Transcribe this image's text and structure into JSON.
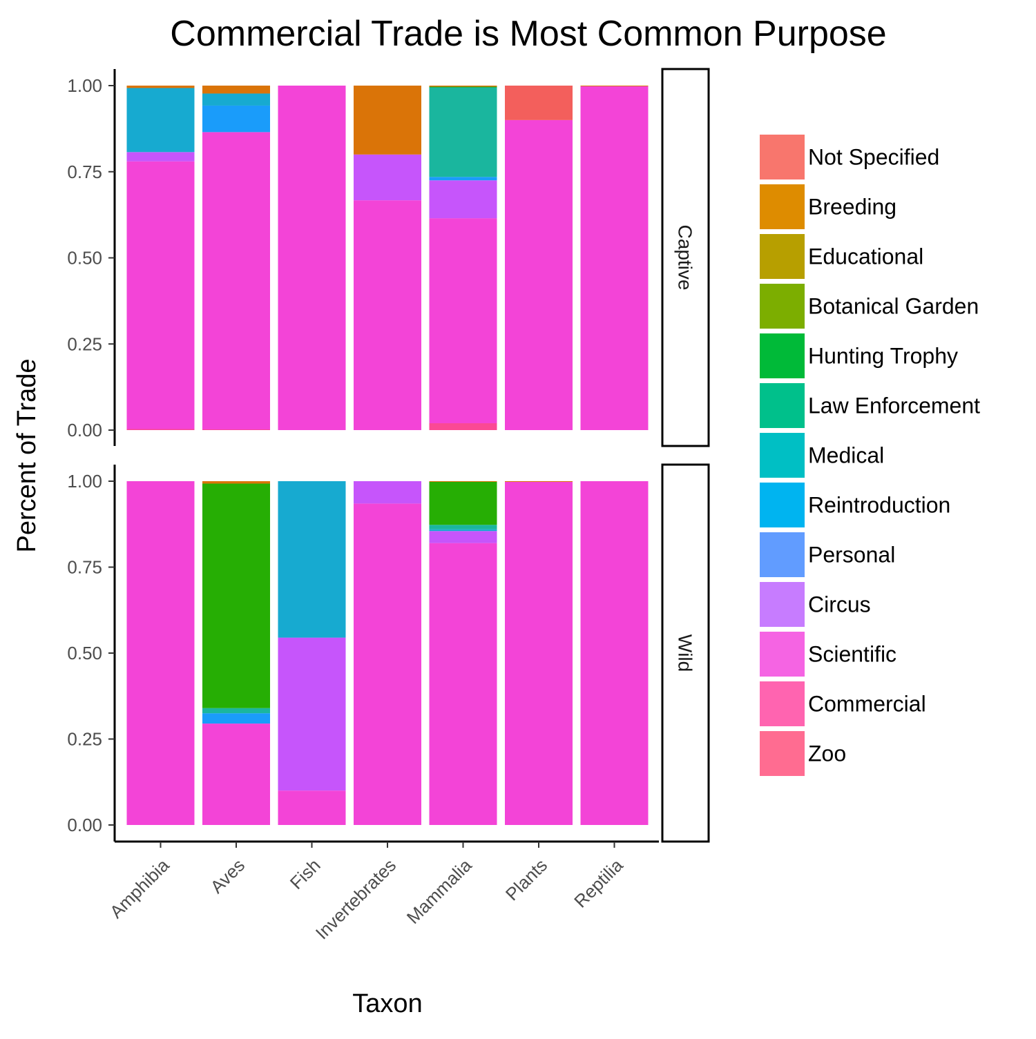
{
  "chart_data": {
    "type": "bar",
    "stacked": true,
    "title": "Commercial Trade is Most Common Purpose",
    "xlabel": "Taxon",
    "ylabel": "Percent of Trade",
    "ylim": [
      0,
      1
    ],
    "yticks": [
      "0.00",
      "0.25",
      "0.50",
      "0.75",
      "1.00"
    ],
    "categories": [
      "Amphibia",
      "Aves",
      "Fish",
      "Invertebrates",
      "Mammalia",
      "Plants",
      "Reptilia"
    ],
    "legend": {
      "position": "right",
      "entries": [
        {
          "name": "Not Specified",
          "color": "#F8766D"
        },
        {
          "name": "Breeding",
          "color": "#DE8C00"
        },
        {
          "name": "Educational",
          "color": "#B79F00"
        },
        {
          "name": "Botanical Garden",
          "color": "#7CAE00"
        },
        {
          "name": "Hunting Trophy",
          "color": "#00BA38"
        },
        {
          "name": "Law Enforcement",
          "color": "#00C08B"
        },
        {
          "name": "Medical",
          "color": "#00BFC4"
        },
        {
          "name": "Reintroduction",
          "color": "#00B4F0"
        },
        {
          "name": "Personal",
          "color": "#619CFF"
        },
        {
          "name": "Circus",
          "color": "#C77CFF"
        },
        {
          "name": "Scientific",
          "color": "#F564E3"
        },
        {
          "name": "Commercial",
          "color": "#FF64B0"
        },
        {
          "name": "Zoo",
          "color": "#FF6C91"
        }
      ]
    },
    "bar_colors": {
      "Not Specified": "#F35F5C",
      "Breeding": "#DA7408",
      "Educational": "#B08A08",
      "Botanical Garden": "#7B9E0A",
      "Hunting Trophy": "#26AE04",
      "Law Enforcement": "#15B35C",
      "Medical": "#1AB69E",
      "Reintroduction": "#17AAD0",
      "Personal": "#1A9CFA",
      "Circus": "#7A79FB",
      "Scientific": "#C655FB",
      "Commercial": "#F344D7",
      "Zoo": "#FB4994"
    },
    "facets": [
      {
        "label": "Captive",
        "bars": [
          {
            "category": "Amphibia",
            "segments": [
              {
                "purpose": "Zoo",
                "value": 0.003
              },
              {
                "purpose": "Commercial",
                "value": 0.777
              },
              {
                "purpose": "Scientific",
                "value": 0.027
              },
              {
                "purpose": "Reintroduction",
                "value": 0.186
              },
              {
                "purpose": "Breeding",
                "value": 0.007
              }
            ]
          },
          {
            "category": "Aves",
            "segments": [
              {
                "purpose": "Zoo",
                "value": 0.002
              },
              {
                "purpose": "Commercial",
                "value": 0.863
              },
              {
                "purpose": "Personal",
                "value": 0.077
              },
              {
                "purpose": "Reintroduction",
                "value": 0.035
              },
              {
                "purpose": "Breeding",
                "value": 0.023
              }
            ]
          },
          {
            "category": "Fish",
            "segments": [
              {
                "purpose": "Commercial",
                "value": 1.0
              }
            ]
          },
          {
            "category": "Invertebrates",
            "segments": [
              {
                "purpose": "Commercial",
                "value": 0.667
              },
              {
                "purpose": "Scientific",
                "value": 0.133
              },
              {
                "purpose": "Breeding",
                "value": 0.2
              }
            ]
          },
          {
            "category": "Mammalia",
            "segments": [
              {
                "purpose": "Zoo",
                "value": 0.02
              },
              {
                "purpose": "Commercial",
                "value": 0.595
              },
              {
                "purpose": "Scientific",
                "value": 0.11
              },
              {
                "purpose": "Personal",
                "value": 0.01
              },
              {
                "purpose": "Medical",
                "value": 0.26
              },
              {
                "purpose": "Hunting Trophy",
                "value": 0.002
              },
              {
                "purpose": "Breeding",
                "value": 0.003
              }
            ]
          },
          {
            "category": "Plants",
            "segments": [
              {
                "purpose": "Commercial",
                "value": 0.9
              },
              {
                "purpose": "Not Specified",
                "value": 0.1
              }
            ]
          },
          {
            "category": "Reptilia",
            "segments": [
              {
                "purpose": "Commercial",
                "value": 0.998
              },
              {
                "purpose": "Breeding",
                "value": 0.002
              }
            ]
          }
        ]
      },
      {
        "label": "Wild",
        "bars": [
          {
            "category": "Amphibia",
            "segments": [
              {
                "purpose": "Commercial",
                "value": 1.0
              }
            ]
          },
          {
            "category": "Aves",
            "segments": [
              {
                "purpose": "Commercial",
                "value": 0.295
              },
              {
                "purpose": "Personal",
                "value": 0.03
              },
              {
                "purpose": "Medical",
                "value": 0.015
              },
              {
                "purpose": "Hunting Trophy",
                "value": 0.653
              },
              {
                "purpose": "Breeding",
                "value": 0.007
              }
            ]
          },
          {
            "category": "Fish",
            "segments": [
              {
                "purpose": "Commercial",
                "value": 0.1
              },
              {
                "purpose": "Scientific",
                "value": 0.445
              },
              {
                "purpose": "Reintroduction",
                "value": 0.455
              }
            ]
          },
          {
            "category": "Invertebrates",
            "segments": [
              {
                "purpose": "Commercial",
                "value": 0.935
              },
              {
                "purpose": "Scientific",
                "value": 0.065
              }
            ]
          },
          {
            "category": "Mammalia",
            "segments": [
              {
                "purpose": "Commercial",
                "value": 0.82
              },
              {
                "purpose": "Scientific",
                "value": 0.035
              },
              {
                "purpose": "Reintroduction",
                "value": 0.005
              },
              {
                "purpose": "Medical",
                "value": 0.013
              },
              {
                "purpose": "Hunting Trophy",
                "value": 0.125
              },
              {
                "purpose": "Breeding",
                "value": 0.002
              }
            ]
          },
          {
            "category": "Plants",
            "segments": [
              {
                "purpose": "Commercial",
                "value": 0.998
              },
              {
                "purpose": "Breeding",
                "value": 0.002
              }
            ]
          },
          {
            "category": "Reptilia",
            "segments": [
              {
                "purpose": "Commercial",
                "value": 1.0
              }
            ]
          }
        ]
      }
    ]
  }
}
